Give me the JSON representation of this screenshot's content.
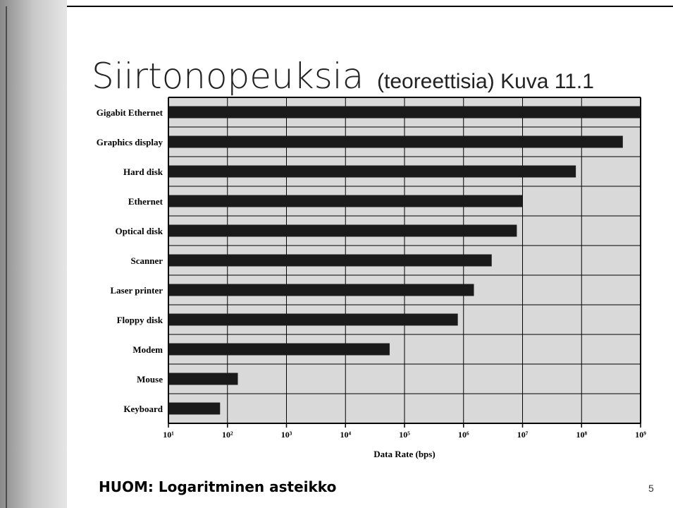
{
  "slide": {
    "title": "Siirtonopeuksia",
    "subtitle": "(teoreettisia) Kuva 11.1",
    "note": "HUOM: Logaritminen asteikko",
    "page_number": 5
  },
  "chart_data": {
    "type": "barh",
    "xlabel": "Data Rate (bps)",
    "categories": [
      "Gigabit Ethernet",
      "Graphics display",
      "Hard disk",
      "Ethernet",
      "Optical disk",
      "Scanner",
      "Laser printer",
      "Floppy disk",
      "Modem",
      "Mouse",
      "Keyboard"
    ],
    "values": [
      1000000000,
      500000000,
      80000000,
      10000000,
      8000000,
      3000000,
      1500000,
      800000,
      56000,
      150,
      75
    ],
    "color": "#1a1a1a",
    "background": "#d9d9d9",
    "log_x": true,
    "grid": true,
    "xlim": [
      10,
      1000000000
    ],
    "xticks": [
      {
        "value": 10,
        "label": "10¹"
      },
      {
        "value": 100,
        "label": "10²"
      },
      {
        "value": 1000,
        "label": "10³"
      },
      {
        "value": 10000,
        "label": "10⁴"
      },
      {
        "value": 100000,
        "label": "10⁵"
      },
      {
        "value": 1000000,
        "label": "10⁶"
      },
      {
        "value": 10000000,
        "label": "10⁷"
      },
      {
        "value": 100000000,
        "label": "10⁸"
      },
      {
        "value": 1000000000,
        "label": "10⁹"
      }
    ]
  }
}
